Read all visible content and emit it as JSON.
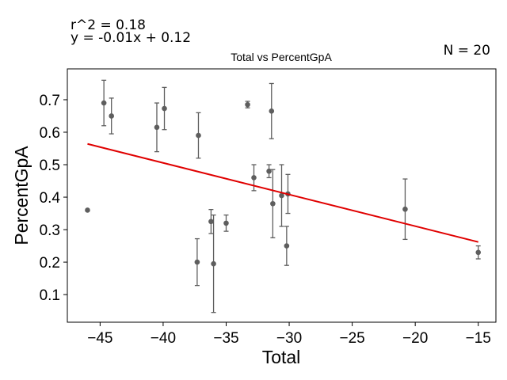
{
  "chart_data": {
    "type": "scatter",
    "title": "Total vs PercentGpA",
    "xlabel": "Total",
    "ylabel": "PercentGpA",
    "xlim": [
      -47.6,
      -13.6
    ],
    "ylim": [
      0.015,
      0.795
    ],
    "xticks": [
      -45,
      -40,
      -35,
      -30,
      -25,
      -20,
      -15
    ],
    "yticks": [
      0.1,
      0.2,
      0.3,
      0.4,
      0.5,
      0.6,
      0.7
    ],
    "annotations": {
      "r2": "r^2 = 0.18",
      "equation": "y = -0.01x + 0.12",
      "n": "N = 20"
    },
    "points": [
      {
        "x": -46.0,
        "y": 0.36,
        "err": 0.0
      },
      {
        "x": -44.7,
        "y": 0.69,
        "err": 0.07
      },
      {
        "x": -44.1,
        "y": 0.65,
        "err": 0.055
      },
      {
        "x": -40.5,
        "y": 0.615,
        "err": 0.075
      },
      {
        "x": -39.9,
        "y": 0.673,
        "err": 0.065
      },
      {
        "x": -37.3,
        "y": 0.2,
        "err": 0.072
      },
      {
        "x": -37.2,
        "y": 0.59,
        "err": 0.07
      },
      {
        "x": -36.2,
        "y": 0.325,
        "err": 0.037
      },
      {
        "x": -36.0,
        "y": 0.195,
        "err": 0.15
      },
      {
        "x": -35.0,
        "y": 0.32,
        "err": 0.025
      },
      {
        "x": -33.3,
        "y": 0.685,
        "err": 0.01
      },
      {
        "x": -32.8,
        "y": 0.46,
        "err": 0.04
      },
      {
        "x": -31.6,
        "y": 0.48,
        "err": 0.02
      },
      {
        "x": -31.4,
        "y": 0.665,
        "err": 0.085
      },
      {
        "x": -31.3,
        "y": 0.38,
        "err": 0.105
      },
      {
        "x": -30.6,
        "y": 0.405,
        "err": 0.095
      },
      {
        "x": -30.2,
        "y": 0.25,
        "err": 0.06
      },
      {
        "x": -30.1,
        "y": 0.41,
        "err": 0.06
      },
      {
        "x": -20.8,
        "y": 0.363,
        "err": 0.093
      },
      {
        "x": -15.0,
        "y": 0.23,
        "err": 0.02
      }
    ],
    "fit_line": {
      "x": [
        -46.0,
        -15.0
      ],
      "y": [
        0.564,
        0.262
      ]
    },
    "colors": {
      "points": "#5e5e5e",
      "fit": "#e00000"
    }
  }
}
